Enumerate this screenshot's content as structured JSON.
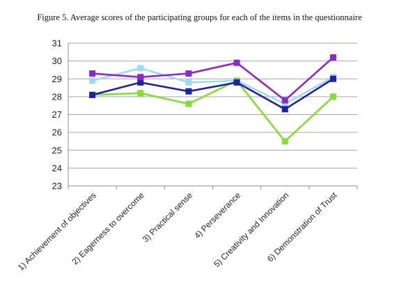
{
  "chart_data": {
    "type": "line",
    "title": "Figure 5. Average scores of the participating groups for each of the items in the questionnaire",
    "categories": [
      "1) Achievement of objectives",
      "2) Eagerness to overcome",
      "3) Practical sense",
      "4) Perseverance",
      "5) Creativity and Innovation",
      "6) Demonstration of Trust"
    ],
    "ylim": [
      23,
      31
    ],
    "yticks": [
      23,
      24,
      25,
      26,
      27,
      28,
      29,
      30,
      31
    ],
    "grid": true,
    "legend": "none",
    "series": [
      {
        "color": "#9ED9F5",
        "values": [
          28.9,
          29.6,
          28.8,
          28.9,
          27.6,
          29.1
        ]
      },
      {
        "color": "#80E02F",
        "values": [
          28.1,
          28.2,
          27.6,
          28.9,
          25.5,
          28.0
        ]
      },
      {
        "color": "#1F22A0",
        "values": [
          28.1,
          28.8,
          28.3,
          28.8,
          27.3,
          29.0
        ]
      },
      {
        "color": "#8C2AC8",
        "values": [
          29.3,
          29.1,
          29.3,
          29.9,
          27.8,
          30.2
        ]
      }
    ]
  }
}
